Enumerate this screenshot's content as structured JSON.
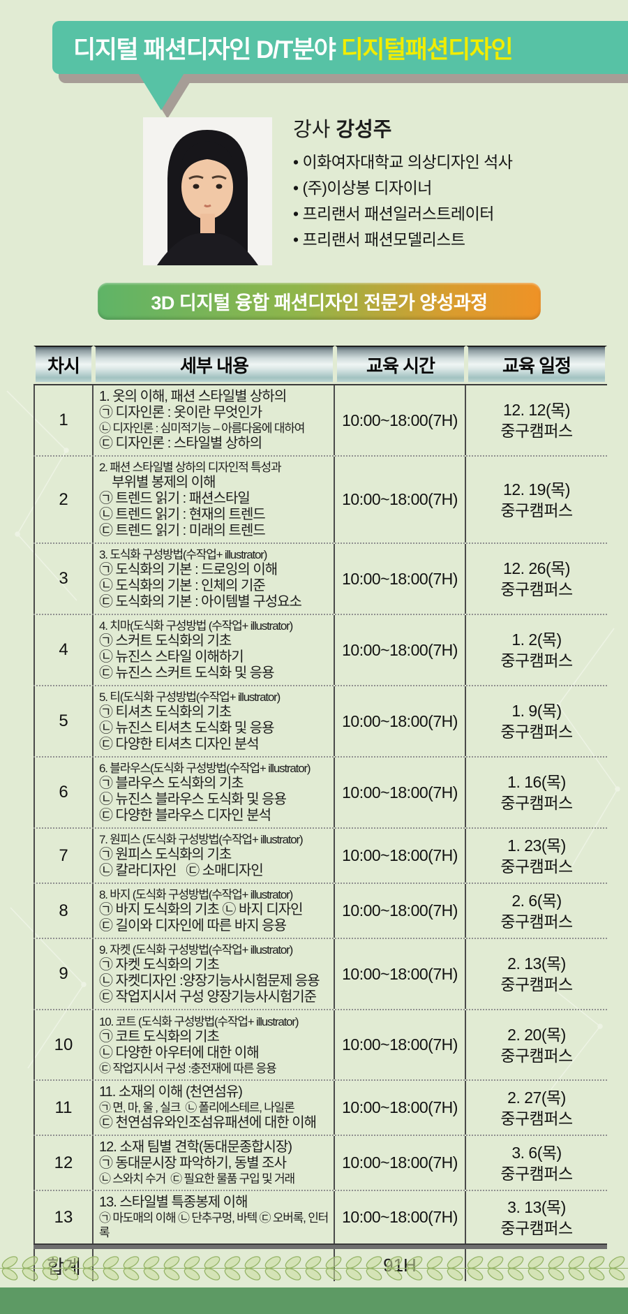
{
  "colors": {
    "page_bg": "#e1ebd3",
    "ribbon_teal": "#57c2a5",
    "ribbon_shadow": "#a69d96",
    "highlight_yellow": "#f1ed00",
    "program_green": "#5fb467",
    "program_orange": "#ef9226",
    "footer_band_green": "#5d9a64",
    "leaf_green": "#c9dc9e"
  },
  "header_banner": {
    "title_white": "디지털 패션디자인 D/T분야 ",
    "title_yellow": "디지털패션디자인"
  },
  "instructor": {
    "label": "강사 ",
    "name": "강성주",
    "photo_alt": "instructor-portrait",
    "credentials": [
      "• 이화여자대학교 의상디자인 석사",
      "• (주)이상봉 디자이너",
      "• 프리랜서 패션일러스트레이터",
      "• 프리랜서 패션모델리스트"
    ]
  },
  "program_banner": {
    "text": "3D 디지털 융합 패션디자인 전문가 양성과정"
  },
  "table": {
    "headers": [
      "차시",
      "세부 내용",
      "교육 시간",
      "교육 일정"
    ],
    "rows": [
      {
        "no": "1",
        "lines": [
          "1. 옷의 이해, 패션 스타일별 상하의",
          "㉠ 디자인론 : 옷이란 무엇인가",
          "㉡ 디자인론 : 심미적기능 – 아름다움에 대하여",
          "㉢ 디자인론 : 스타일별 상하의"
        ],
        "time": "10:00~18:00(7H)",
        "date": "12. 12(목)",
        "campus": "중구캠퍼스"
      },
      {
        "no": "2",
        "lines": [
          "2. 패션 스타일별 상하의 디자인적 특성과",
          "    부위별 봉제의 이해",
          "㉠ 트렌드 읽기 : 패션스타일",
          "㉡ 트렌드 읽기 : 현재의 트렌드",
          "㉢ 트렌드 읽기 : 미래의 트렌드"
        ],
        "time": "10:00~18:00(7H)",
        "date": "12. 19(목)",
        "campus": "중구캠퍼스"
      },
      {
        "no": "3",
        "lines": [
          "3. 도식화 구성방법(수작업+ illustrator)",
          "㉠ 도식화의 기본 : 드로잉의 이해",
          "㉡ 도식화의 기본 : 인체의 기준",
          "㉢ 도식화의 기본 : 아이템별 구성요소"
        ],
        "time": "10:00~18:00(7H)",
        "date": "12. 26(목)",
        "campus": "중구캠퍼스"
      },
      {
        "no": "4",
        "lines": [
          "4. 치마(도식화 구성방법 (수작업+ illustrator)",
          "㉠ 스커트 도식화의 기초",
          "㉡ 뉴진스 스타일 이해하기",
          "㉢ 뉴진스 스커트 도식화 및 응용"
        ],
        "time": "10:00~18:00(7H)",
        "date": "1. 2(목)",
        "campus": "중구캠퍼스"
      },
      {
        "no": "5",
        "lines": [
          "5. 티(도식화 구성방법(수작업+ illustrator)",
          "㉠ 티셔츠 도식화의 기초",
          "㉡ 뉴진스 티셔츠 도식화 및 응용",
          "㉢ 다양한 티셔츠 디자인 분석"
        ],
        "time": "10:00~18:00(7H)",
        "date": "1. 9(목)",
        "campus": "중구캠퍼스"
      },
      {
        "no": "6",
        "lines": [
          "6. 블라우스(도식화 구성방법(수작업+ illustrator)",
          "㉠ 블라우스 도식화의 기초",
          "㉡ 뉴진스 블라우스 도식화 및 응용",
          "㉢ 다양한 블라우스 디자인 분석"
        ],
        "time": "10:00~18:00(7H)",
        "date": "1. 16(목)",
        "campus": "중구캠퍼스"
      },
      {
        "no": "7",
        "lines": [
          "7. 원피스 (도식화 구성방법(수작업+ illustrator)",
          "㉠ 원피스 도식화의 기초",
          "㉡ 칼라디자인   ㉢ 소매디자인"
        ],
        "time": "10:00~18:00(7H)",
        "date": "1. 23(목)",
        "campus": "중구캠퍼스"
      },
      {
        "no": "8",
        "lines": [
          "8. 바지 (도식화 구성방법(수작업+ illustrator)",
          "㉠ 바지 도식화의 기초 ㉡ 바지 디자인",
          "㉢ 길이와 디자인에 따른 바지 응용"
        ],
        "time": "10:00~18:00(7H)",
        "date": "2. 6(목)",
        "campus": "중구캠퍼스"
      },
      {
        "no": "9",
        "lines": [
          "9. 자켓 (도식화 구성방법(수작업+ illustrator)",
          "㉠ 자켓 도식화의 기초",
          "㉡ 자켓디자인 :양장기능사시험문제 응용",
          "㉢ 작업지시서 구성 양장기능사시험기준"
        ],
        "time": "10:00~18:00(7H)",
        "date": "2. 13(목)",
        "campus": "중구캠퍼스"
      },
      {
        "no": "10",
        "lines": [
          "10. 코트 (도식화 구성방법(수작업+ illustrator)",
          "㉠ 코트 도식화의 기초",
          "㉡ 다양한 아우터에 대한 이해",
          "㉢ 작업지시서 구성 :충전재에 따른 응용"
        ],
        "time": "10:00~18:00(7H)",
        "date": "2. 20(목)",
        "campus": "중구캠퍼스"
      },
      {
        "no": "11",
        "lines": [
          "11. 소재의 이해 (천연섬유)",
          "㉠ 면, 마, 울 , 실크  ㉡ 폴리에스테르, 나일론",
          "㉢ 천연섬유와인조섬유패션에 대한 이해"
        ],
        "time": "10:00~18:00(7H)",
        "date": "2. 27(목)",
        "campus": "중구캠퍼스"
      },
      {
        "no": "12",
        "lines": [
          "12. 소재 팀별 견학(동대문종합시장)",
          "㉠ 동대문시장 파악하기, 동별 조사",
          "㉡ 스와치 수거  ㉢ 필요한 물품 구입 및 거래"
        ],
        "time": "10:00~18:00(7H)",
        "date": "3. 6(목)",
        "campus": "중구캠퍼스"
      },
      {
        "no": "13",
        "lines": [
          "13. 스타일별 특종봉제 이해",
          "㉠ 마도매의 이해 ㉡ 단추구멍, 바텍 ㉢ 오버록, 인터록"
        ],
        "time": "10:00~18:00(7H)",
        "date": "3. 13(목)",
        "campus": "중구캠퍼스"
      }
    ],
    "total": {
      "label": "합계",
      "hours": "91H"
    }
  }
}
